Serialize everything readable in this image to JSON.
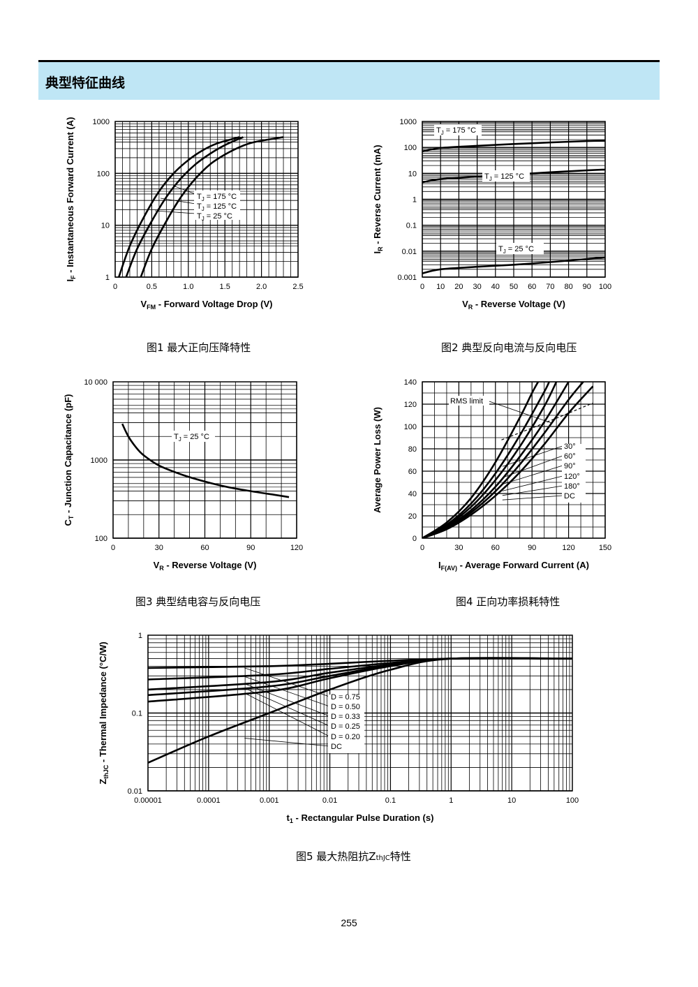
{
  "section": {
    "title": "典型特征曲线",
    "color": "#bfe6f5"
  },
  "captions": {
    "c1": "图1  最大正向压降特性",
    "c2": "图2  典型反向电流与反向电压",
    "c3": "图3  典型结电容与反向电压",
    "c4": "图4  正向功率损耗特性",
    "c5_pre": "图5  最大热阻抗Z",
    "c5_sub": "thJC",
    "c5_post": "特性"
  },
  "page_number": "255",
  "chart_data": [
    {
      "id": "fig1",
      "type": "line",
      "yscale": "log",
      "xlabel": "V_FM - Forward Voltage Drop (V)",
      "ylabel": "I_F - Instantaneous Forward Current (A)",
      "xlim": [
        0,
        2.5
      ],
      "ylim": [
        1,
        1000
      ],
      "xticks": [
        "0",
        "0.5",
        "1.0",
        "1.5",
        "2.0",
        "2.5"
      ],
      "yticks": [
        "1",
        "10",
        "100",
        "1000"
      ],
      "series": [
        {
          "name": "T_J = 175 °C",
          "points": [
            [
              0.05,
              1
            ],
            [
              0.2,
              4
            ],
            [
              0.4,
              15
            ],
            [
              0.6,
              45
            ],
            [
              0.8,
              100
            ],
            [
              1.0,
              180
            ],
            [
              1.2,
              280
            ],
            [
              1.4,
              380
            ],
            [
              1.7,
              500
            ]
          ]
        },
        {
          "name": "T_J = 125 °C",
          "points": [
            [
              0.15,
              1
            ],
            [
              0.3,
              3.5
            ],
            [
              0.5,
              12
            ],
            [
              0.7,
              35
            ],
            [
              0.9,
              80
            ],
            [
              1.1,
              150
            ],
            [
              1.3,
              240
            ],
            [
              1.5,
              350
            ],
            [
              1.75,
              500
            ]
          ]
        },
        {
          "name": "T_J = 25 °C",
          "points": [
            [
              0.35,
              1
            ],
            [
              0.5,
              3.5
            ],
            [
              0.7,
              12
            ],
            [
              0.9,
              35
            ],
            [
              1.1,
              80
            ],
            [
              1.3,
              150
            ],
            [
              1.5,
              230
            ],
            [
              1.7,
              320
            ],
            [
              1.9,
              400
            ],
            [
              2.3,
              500
            ]
          ]
        }
      ]
    },
    {
      "id": "fig2",
      "type": "line",
      "yscale": "log",
      "xlabel": "V_R - Reverse Voltage (V)",
      "ylabel": "I_R - Reverse Current (mA)",
      "xlim": [
        0,
        100
      ],
      "ylim": [
        0.001,
        1000
      ],
      "xticks": [
        "0",
        "10",
        "20",
        "30",
        "40",
        "50",
        "60",
        "70",
        "80",
        "90",
        "100"
      ],
      "yticks": [
        "0.001",
        "0.01",
        "0.1",
        "1",
        "10",
        "100",
        "1000"
      ],
      "series": [
        {
          "name": "T_J = 175 °C",
          "points": [
            [
              0,
              70
            ],
            [
              10,
              95
            ],
            [
              30,
              115
            ],
            [
              50,
              135
            ],
            [
              70,
              155
            ],
            [
              90,
              175
            ],
            [
              100,
              180
            ]
          ]
        },
        {
          "name": "T_J = 125 °C",
          "points": [
            [
              0,
              4.5
            ],
            [
              10,
              6
            ],
            [
              30,
              7.5
            ],
            [
              50,
              9
            ],
            [
              70,
              11
            ],
            [
              90,
              13
            ],
            [
              100,
              14
            ]
          ]
        },
        {
          "name": "T_J = 25 °C",
          "points": [
            [
              0,
              0.0014
            ],
            [
              10,
              0.002
            ],
            [
              30,
              0.0025
            ],
            [
              50,
              0.003
            ],
            [
              70,
              0.0038
            ],
            [
              90,
              0.005
            ],
            [
              100,
              0.0058
            ]
          ]
        }
      ]
    },
    {
      "id": "fig3",
      "type": "line",
      "yscale": "log",
      "xlabel": "V_R - Reverse Voltage (V)",
      "ylabel": "C_T - Junction Capacitance (pF)",
      "xlim": [
        0,
        120
      ],
      "ylim": [
        100,
        10000
      ],
      "xticks": [
        "0",
        "30",
        "60",
        "90",
        "120"
      ],
      "yticks": [
        "100",
        "1000",
        "10 000"
      ],
      "series": [
        {
          "name": "T_J = 25 °C",
          "points": [
            [
              6,
              2900
            ],
            [
              10,
              2000
            ],
            [
              15,
              1450
            ],
            [
              20,
              1150
            ],
            [
              30,
              850
            ],
            [
              45,
              650
            ],
            [
              60,
              530
            ],
            [
              75,
              450
            ],
            [
              90,
              400
            ],
            [
              105,
              360
            ],
            [
              115,
              335
            ]
          ]
        }
      ]
    },
    {
      "id": "fig4",
      "type": "line",
      "xlabel": "I_F(AV) - Average Forward Current (A)",
      "ylabel": "Average Power Loss (W)",
      "xlim": [
        0,
        150
      ],
      "ylim": [
        0,
        140
      ],
      "xticks": [
        "0",
        "30",
        "60",
        "90",
        "120",
        "150"
      ],
      "yticks": [
        "0",
        "20",
        "40",
        "60",
        "80",
        "100",
        "120",
        "140"
      ],
      "series": [
        {
          "name": "30°",
          "points": [
            [
              0,
              0
            ],
            [
              20,
              14
            ],
            [
              40,
              36
            ],
            [
              60,
              68
            ],
            [
              80,
              108
            ],
            [
              90,
              130
            ],
            [
              95,
              140
            ]
          ]
        },
        {
          "name": "60°",
          "points": [
            [
              0,
              0
            ],
            [
              20,
              12
            ],
            [
              40,
              31
            ],
            [
              60,
              58
            ],
            [
              80,
              92
            ],
            [
              100,
              131
            ],
            [
              104,
              140
            ]
          ]
        },
        {
          "name": "90°",
          "points": [
            [
              0,
              0
            ],
            [
              20,
              11
            ],
            [
              40,
              28
            ],
            [
              60,
              52
            ],
            [
              80,
              82
            ],
            [
              100,
              118
            ],
            [
              110,
              140
            ]
          ]
        },
        {
          "name": "120°",
          "points": [
            [
              0,
              0
            ],
            [
              20,
              10
            ],
            [
              40,
              25
            ],
            [
              60,
              46
            ],
            [
              80,
              73
            ],
            [
              100,
              104
            ],
            [
              120,
              140
            ]
          ]
        },
        {
          "name": "180°",
          "points": [
            [
              0,
              0
            ],
            [
              20,
              9
            ],
            [
              40,
              23
            ],
            [
              60,
              42
            ],
            [
              80,
              66
            ],
            [
              100,
              94
            ],
            [
              120,
              124
            ],
            [
              132,
              140
            ]
          ]
        },
        {
          "name": "DC",
          "points": [
            [
              0,
              0
            ],
            [
              20,
              8
            ],
            [
              40,
              21
            ],
            [
              60,
              38
            ],
            [
              80,
              59
            ],
            [
              100,
              84
            ],
            [
              120,
              112
            ],
            [
              140,
              136
            ]
          ]
        },
        {
          "name": "RMS limit",
          "points": [
            [
              65,
              88
            ],
            [
              100,
              103
            ],
            [
              140,
              121
            ]
          ]
        }
      ]
    },
    {
      "id": "fig5",
      "type": "line",
      "xscale": "log",
      "yscale": "log",
      "xlabel": "t_1 - Rectangular Pulse Duration (s)",
      "ylabel": "Z_thJC - Thermal Impedance (°C/W)",
      "xlim": [
        1e-05,
        100
      ],
      "ylim": [
        0.01,
        1
      ],
      "xticks": [
        "0.00001",
        "0.0001",
        "0.001",
        "0.01",
        "0.1",
        "1",
        "10",
        "100"
      ],
      "yticks": [
        "0.01",
        "0.1",
        "1"
      ],
      "series": [
        {
          "name": "D = 0.75",
          "points": [
            [
              1e-05,
              0.38
            ],
            [
              0.001,
              0.4
            ],
            [
              0.01,
              0.43
            ],
            [
              0.1,
              0.47
            ],
            [
              1,
              0.5
            ],
            [
              100,
              0.5
            ]
          ]
        },
        {
          "name": "D = 0.50",
          "points": [
            [
              1e-05,
              0.27
            ],
            [
              0.001,
              0.31
            ],
            [
              0.01,
              0.37
            ],
            [
              0.1,
              0.44
            ],
            [
              1,
              0.5
            ],
            [
              100,
              0.5
            ]
          ]
        },
        {
          "name": "D = 0.33",
          "points": [
            [
              1e-05,
              0.2
            ],
            [
              0.001,
              0.25
            ],
            [
              0.01,
              0.33
            ],
            [
              0.1,
              0.42
            ],
            [
              1,
              0.5
            ],
            [
              100,
              0.5
            ]
          ]
        },
        {
          "name": "D = 0.25",
          "points": [
            [
              1e-05,
              0.17
            ],
            [
              0.001,
              0.22
            ],
            [
              0.01,
              0.3
            ],
            [
              0.1,
              0.41
            ],
            [
              1,
              0.5
            ],
            [
              100,
              0.5
            ]
          ]
        },
        {
          "name": "D = 0.20",
          "points": [
            [
              1e-05,
              0.14
            ],
            [
              0.001,
              0.19
            ],
            [
              0.01,
              0.28
            ],
            [
              0.1,
              0.4
            ],
            [
              1,
              0.5
            ],
            [
              100,
              0.5
            ]
          ]
        },
        {
          "name": "DC",
          "points": [
            [
              1e-05,
              0.023
            ],
            [
              0.0001,
              0.05
            ],
            [
              0.001,
              0.1
            ],
            [
              0.01,
              0.2
            ],
            [
              0.1,
              0.36
            ],
            [
              1,
              0.5
            ],
            [
              100,
              0.5
            ]
          ]
        }
      ]
    }
  ]
}
